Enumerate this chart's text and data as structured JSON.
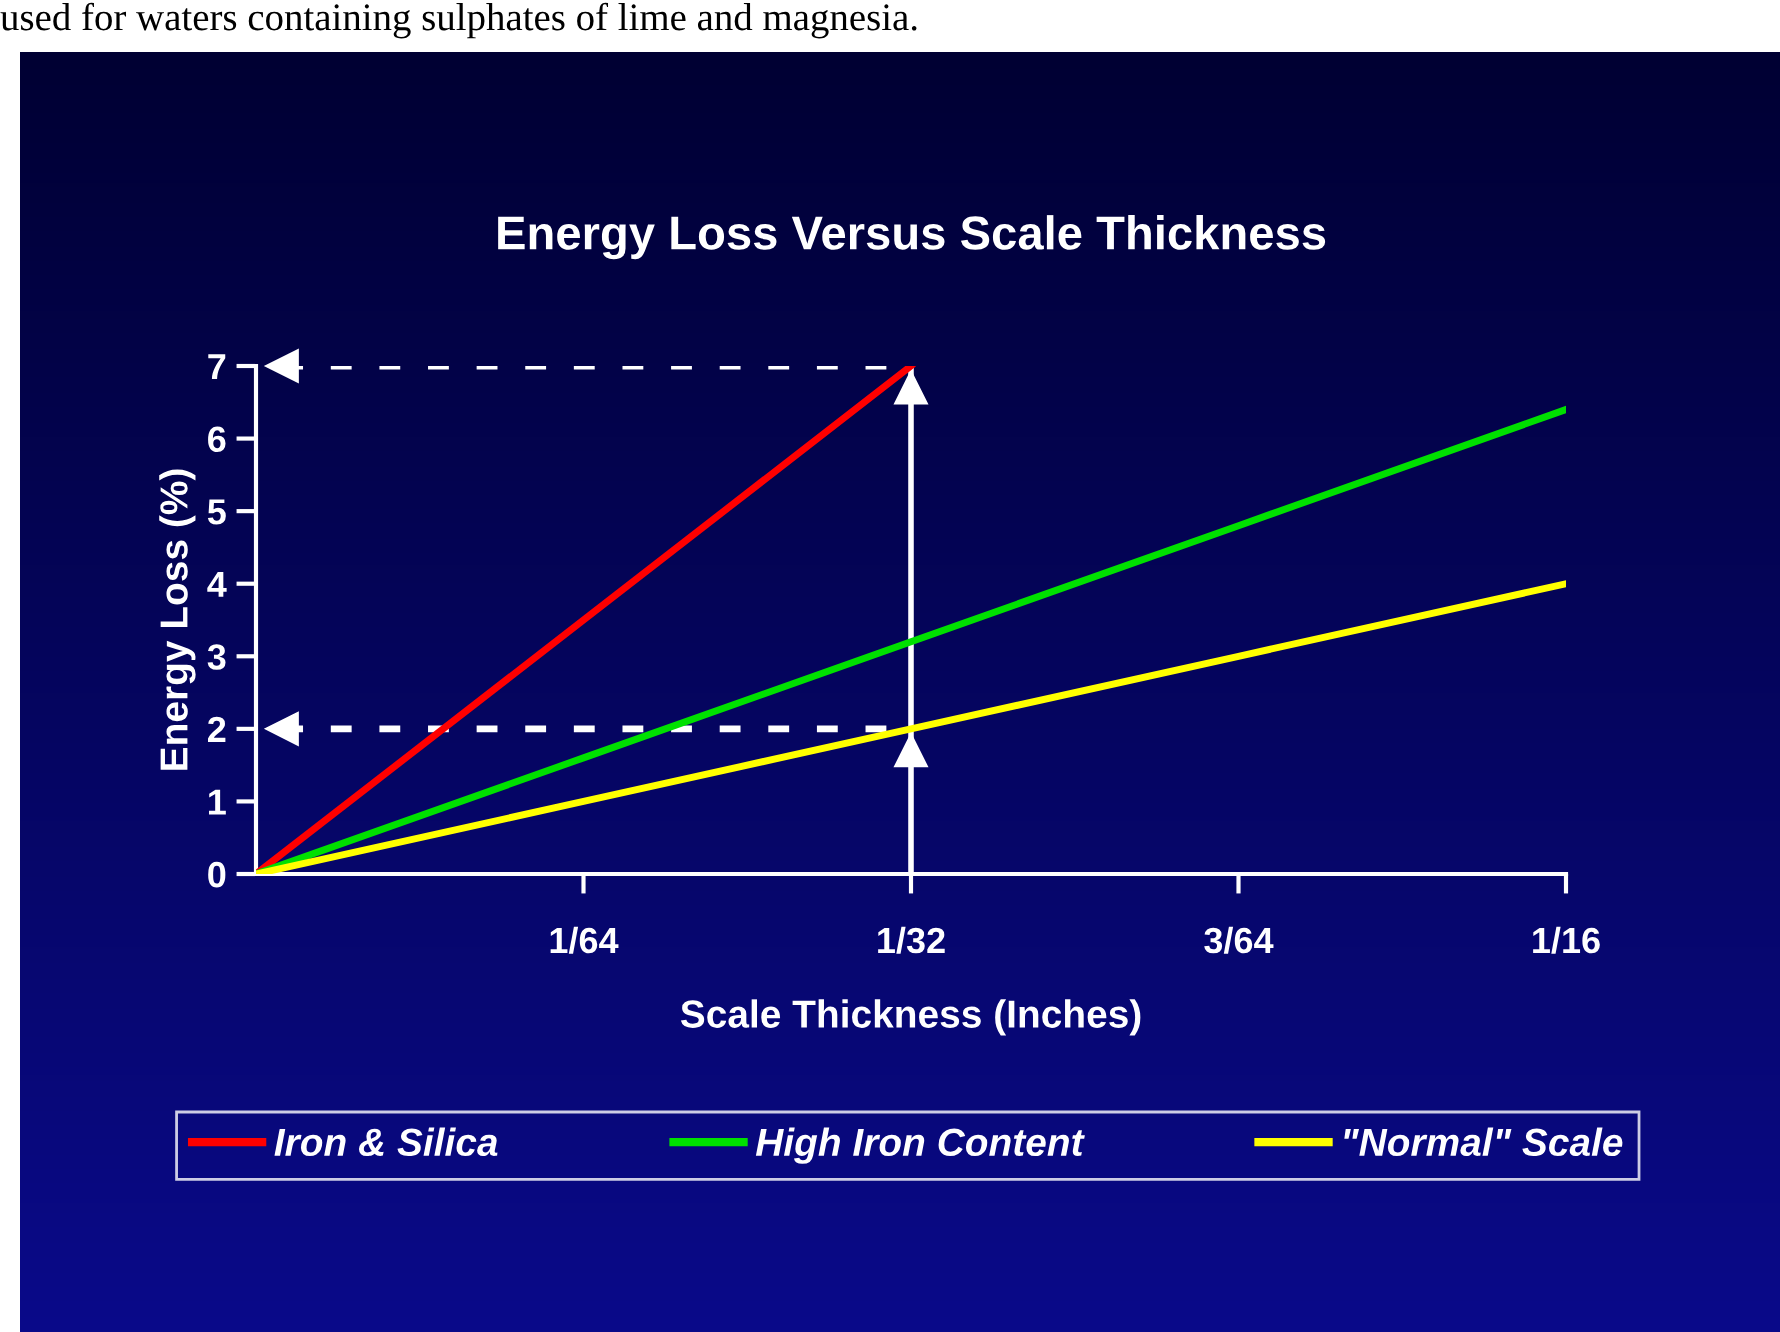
{
  "chart_data": {
    "type": "line",
    "title": "Energy Loss Versus Scale Thickness",
    "xlabel": "Scale Thickness (Inches)",
    "ylabel": "Energy Loss (%)",
    "annotations": [
      "used for waters containing sulphates of lime and magnesia."
    ],
    "series": [
      {
        "name": "Iron & Silica",
        "color": "#ff0000",
        "values": [
          0,
          3.5,
          7,
          null,
          null
        ]
      },
      {
        "name": "High Iron Content",
        "color": "#00e000",
        "values": [
          0,
          1.6,
          3.2,
          4.8,
          6.4
        ]
      },
      {
        "name": "\"Normal\" Scale",
        "color": "#ffff00",
        "values": [
          0,
          1,
          2,
          3,
          4
        ]
      }
    ],
    "categories": [
      null,
      "1/64",
      "1/32",
      "3/64",
      "1/16"
    ],
    "ylim": [
      0,
      7
    ],
    "yticks": [
      0,
      1,
      2,
      3,
      4,
      5,
      6,
      7
    ],
    "ref_lines": [
      {
        "axis": "y",
        "value": 7,
        "color": "#ffffff",
        "line_style": "dashed"
      },
      {
        "axis": "y",
        "value": 2,
        "color": "#ffffff",
        "line_style": "dashed"
      },
      {
        "axis": "x",
        "value": "1/32",
        "color": "#ffffff",
        "line_style": "solid"
      }
    ],
    "grid": false,
    "legend": "bottom",
    "marker": "none",
    "line_style": "solid"
  }
}
